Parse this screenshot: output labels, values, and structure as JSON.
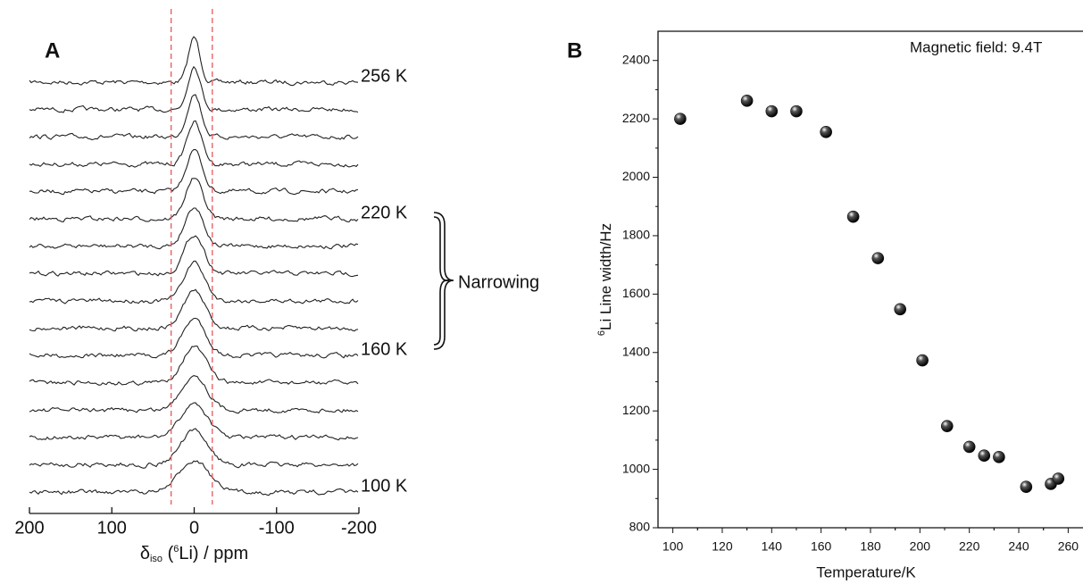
{
  "chart_data": [
    {
      "type": "spectra",
      "panel": "A",
      "x_label": "δiso (6Li) / ppm",
      "xlim": [
        200,
        -200
      ],
      "xticks": [
        200,
        100,
        0,
        -100,
        -200
      ],
      "trace_labels": [
        "256 K",
        null,
        null,
        null,
        null,
        "220 K",
        null,
        null,
        null,
        null,
        "160 K",
        null,
        null,
        null,
        null,
        "100 K"
      ],
      "reference_lines": [
        28,
        -22
      ],
      "reference_color": "#e8595a",
      "bracket_label": "Narrowing"
    },
    {
      "type": "scatter",
      "panel": "B",
      "annotation": "Magnetic field: 9.4T",
      "x_label": "Temperature/K",
      "y_label": "6Li Line width/Hz",
      "xlim": [
        94,
        266
      ],
      "xticks": [
        100,
        120,
        140,
        160,
        180,
        200,
        220,
        240,
        260
      ],
      "ylim": [
        800,
        2500
      ],
      "yticks": [
        800,
        1000,
        1200,
        1400,
        1600,
        1800,
        2000,
        2200,
        2400
      ],
      "x": [
        103,
        130,
        140,
        150,
        162,
        173,
        183,
        192,
        201,
        211,
        220,
        226,
        232,
        243,
        253,
        256
      ],
      "values": [
        2200,
        2262,
        2226,
        2226,
        2155,
        1865,
        1723,
        1548,
        1373,
        1148,
        1077,
        1047,
        1042,
        940,
        950,
        968
      ],
      "color": "#111111"
    }
  ]
}
